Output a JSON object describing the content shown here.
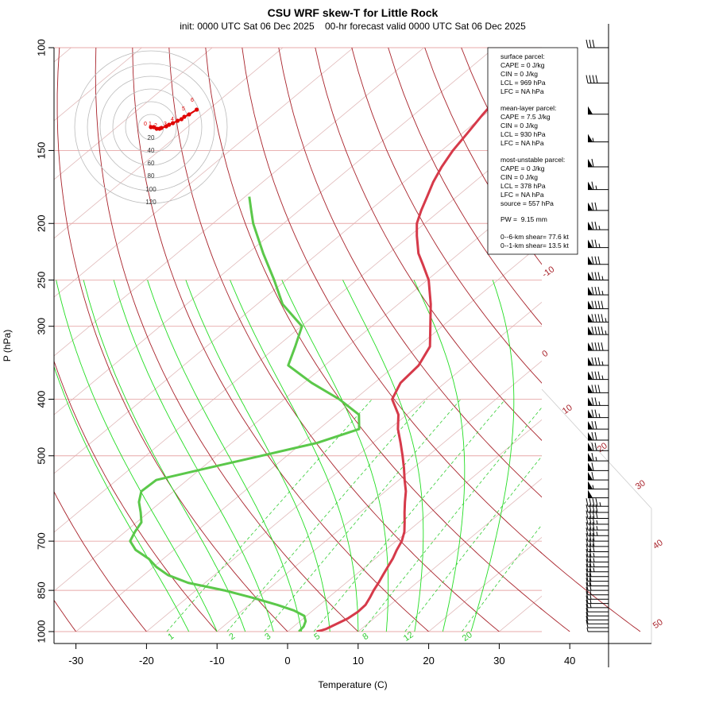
{
  "chart_data": {
    "type": "line",
    "subtype": "skew-T log-P diagram",
    "title": "CSU WRF skew-T for Little Rock",
    "subtitle": "init: 0000 UTC Sat 06 Dec 2025    00-hr forecast valid 0000 UTC Sat 06 Dec 2025",
    "xlabel": "Temperature (C)",
    "ylabel": "P (hPa)",
    "x_ticks": [
      -30,
      -20,
      -10,
      0,
      10,
      20,
      30,
      40
    ],
    "x_tick_labels": [
      "-30",
      "-20",
      "-10",
      "0",
      "10",
      "20",
      "30",
      "40"
    ],
    "y_ticks": [
      100,
      150,
      200,
      250,
      300,
      400,
      500,
      700,
      850,
      1000
    ],
    "y_tick_labels": [
      "100",
      "150",
      "200",
      "250",
      "300",
      "400",
      "500",
      "700",
      "850",
      "1000"
    ],
    "ylim": [
      1000,
      100
    ],
    "y_scale": "log",
    "xlim": [
      -33,
      45
    ],
    "dry_adiabat_labels": [
      "-10",
      "0",
      "10",
      "20",
      "30",
      "40",
      "50"
    ],
    "mixing_ratio_labels": [
      "1",
      "2",
      "3",
      "5",
      "8",
      "12",
      "20"
    ],
    "series": [
      {
        "name": "temperature",
        "color": "#d63a4a",
        "pressure": [
          1000,
          995,
          990,
          980,
          965,
          950,
          925,
          900,
          875,
          850,
          825,
          800,
          775,
          750,
          725,
          700,
          675,
          650,
          625,
          600,
          575,
          550,
          525,
          500,
          475,
          450,
          425,
          400,
          375,
          350,
          325,
          300,
          275,
          250,
          235,
          225,
          210,
          200,
          190,
          180,
          170,
          160,
          150,
          140,
          130,
          120,
          110,
          105
        ],
        "temperature": [
          4.1,
          4.6,
          5.0,
          5.3,
          5.8,
          6.3,
          6.6,
          6.5,
          5.9,
          5.2,
          4.6,
          3.9,
          3.2,
          2.5,
          1.6,
          0.8,
          -0.4,
          -2.0,
          -3.7,
          -5.4,
          -7.1,
          -9.2,
          -11.3,
          -13.6,
          -16.1,
          -18.8,
          -21.2,
          -24.7,
          -26.3,
          -26.7,
          -28.3,
          -31.7,
          -35.4,
          -39.8,
          -43.3,
          -45.8,
          -49.0,
          -51.1,
          -52.7,
          -54.2,
          -55.8,
          -57.2,
          -58.4,
          -59.3,
          -60.3,
          -61.2,
          -62.3,
          -62.8
        ]
      },
      {
        "name": "dewpoint",
        "color": "#5bc84a",
        "pressure": [
          1000,
          980,
          960,
          940,
          920,
          900,
          875,
          850,
          825,
          800,
          775,
          750,
          725,
          700,
          675,
          650,
          625,
          600,
          575,
          550,
          525,
          500,
          475,
          450,
          425,
          400,
          375,
          350,
          325,
          300,
          275,
          250,
          225,
          200,
          190,
          180
        ],
        "temperature": [
          1.6,
          1.4,
          0.8,
          -0.3,
          -2.7,
          -6.0,
          -10.7,
          -16.0,
          -22.4,
          -26.6,
          -29.6,
          -32.1,
          -35.4,
          -37.7,
          -38.6,
          -39.3,
          -41.1,
          -43.1,
          -44.6,
          -44.4,
          -39.2,
          -33.6,
          -27.9,
          -24.3,
          -26.8,
          -32.2,
          -38.9,
          -45.2,
          -47.4,
          -49.9,
          -56.4,
          -61.7,
          -67.8,
          -74.3,
          -76.8,
          -79.4
        ]
      }
    ],
    "hodograph": {
      "ring_labels": [
        "20",
        "40",
        "60",
        "80",
        "100",
        "120"
      ],
      "point_labels": [
        "0",
        "1",
        "2",
        "3",
        "4",
        "5",
        "6"
      ],
      "u": [
        0,
        3,
        6,
        9,
        11,
        16,
        19,
        23,
        28,
        32,
        35,
        40,
        48
      ],
      "v": [
        0,
        0,
        -2,
        -2,
        -1,
        1,
        3,
        5,
        8,
        10,
        13,
        16,
        22
      ]
    },
    "wind_barbs": {
      "pressure": [
        1000,
        985,
        970,
        955,
        940,
        925,
        910,
        895,
        880,
        865,
        850,
        835,
        820,
        805,
        790,
        775,
        760,
        745,
        730,
        715,
        700,
        685,
        670,
        655,
        640,
        625,
        610,
        590,
        570,
        550,
        530,
        510,
        490,
        470,
        450,
        430,
        410,
        390,
        370,
        350,
        330,
        310,
        295,
        280,
        265,
        250,
        235,
        220,
        205,
        190,
        175,
        160,
        145,
        130,
        115,
        100
      ],
      "speed_kt": [
        5,
        10,
        10,
        10,
        10,
        10,
        15,
        15,
        15,
        15,
        20,
        20,
        20,
        20,
        25,
        25,
        25,
        25,
        30,
        30,
        30,
        35,
        35,
        35,
        40,
        40,
        45,
        50,
        55,
        60,
        60,
        65,
        70,
        70,
        70,
        75,
        75,
        80,
        85,
        85,
        90,
        95,
        95,
        90,
        85,
        85,
        80,
        75,
        75,
        70,
        65,
        60,
        55,
        50,
        40,
        30
      ]
    },
    "grid": true
  },
  "info_box": {
    "surface_header": "surface parcel:",
    "surface_cape": "CAPE = 0 J/kg",
    "surface_cin": "CIN = 0 J/kg",
    "surface_lcl": "LCL = 969 hPa",
    "surface_lfc": "LFC = NA hPa",
    "ml_header": "mean-layer parcel:",
    "ml_cape": "CAPE = 7.5 J/kg",
    "ml_cin": "CIN = 0 J/kg",
    "ml_lcl": "LCL = 930 hPa",
    "ml_lfc": "LFC = NA hPa",
    "mu_header": "most-unstable parcel:",
    "mu_cape": "CAPE = 0 J/kg",
    "mu_cin": "CIN = 0 J/kg",
    "mu_lcl": "LCL = 378 hPa",
    "mu_lfc": "LFC = NA hPa",
    "mu_source": "source = 557 hPa",
    "pw": "PW =  9.15 mm",
    "shear_6km": "0--6-km shear= 77.6 kt",
    "shear_1km": "0--1-km shear= 13.5 kt"
  },
  "colors": {
    "temperature": "#d63a4a",
    "dewpoint": "#5bc84a",
    "dry_adiabat": "#a8222a",
    "moist_adiabat": "#22dd22",
    "mixing_ratio": "#33cc33",
    "isobar": "#e7a8a8",
    "isotherm": "#e0b8b8",
    "hodograph": "#e00000"
  }
}
